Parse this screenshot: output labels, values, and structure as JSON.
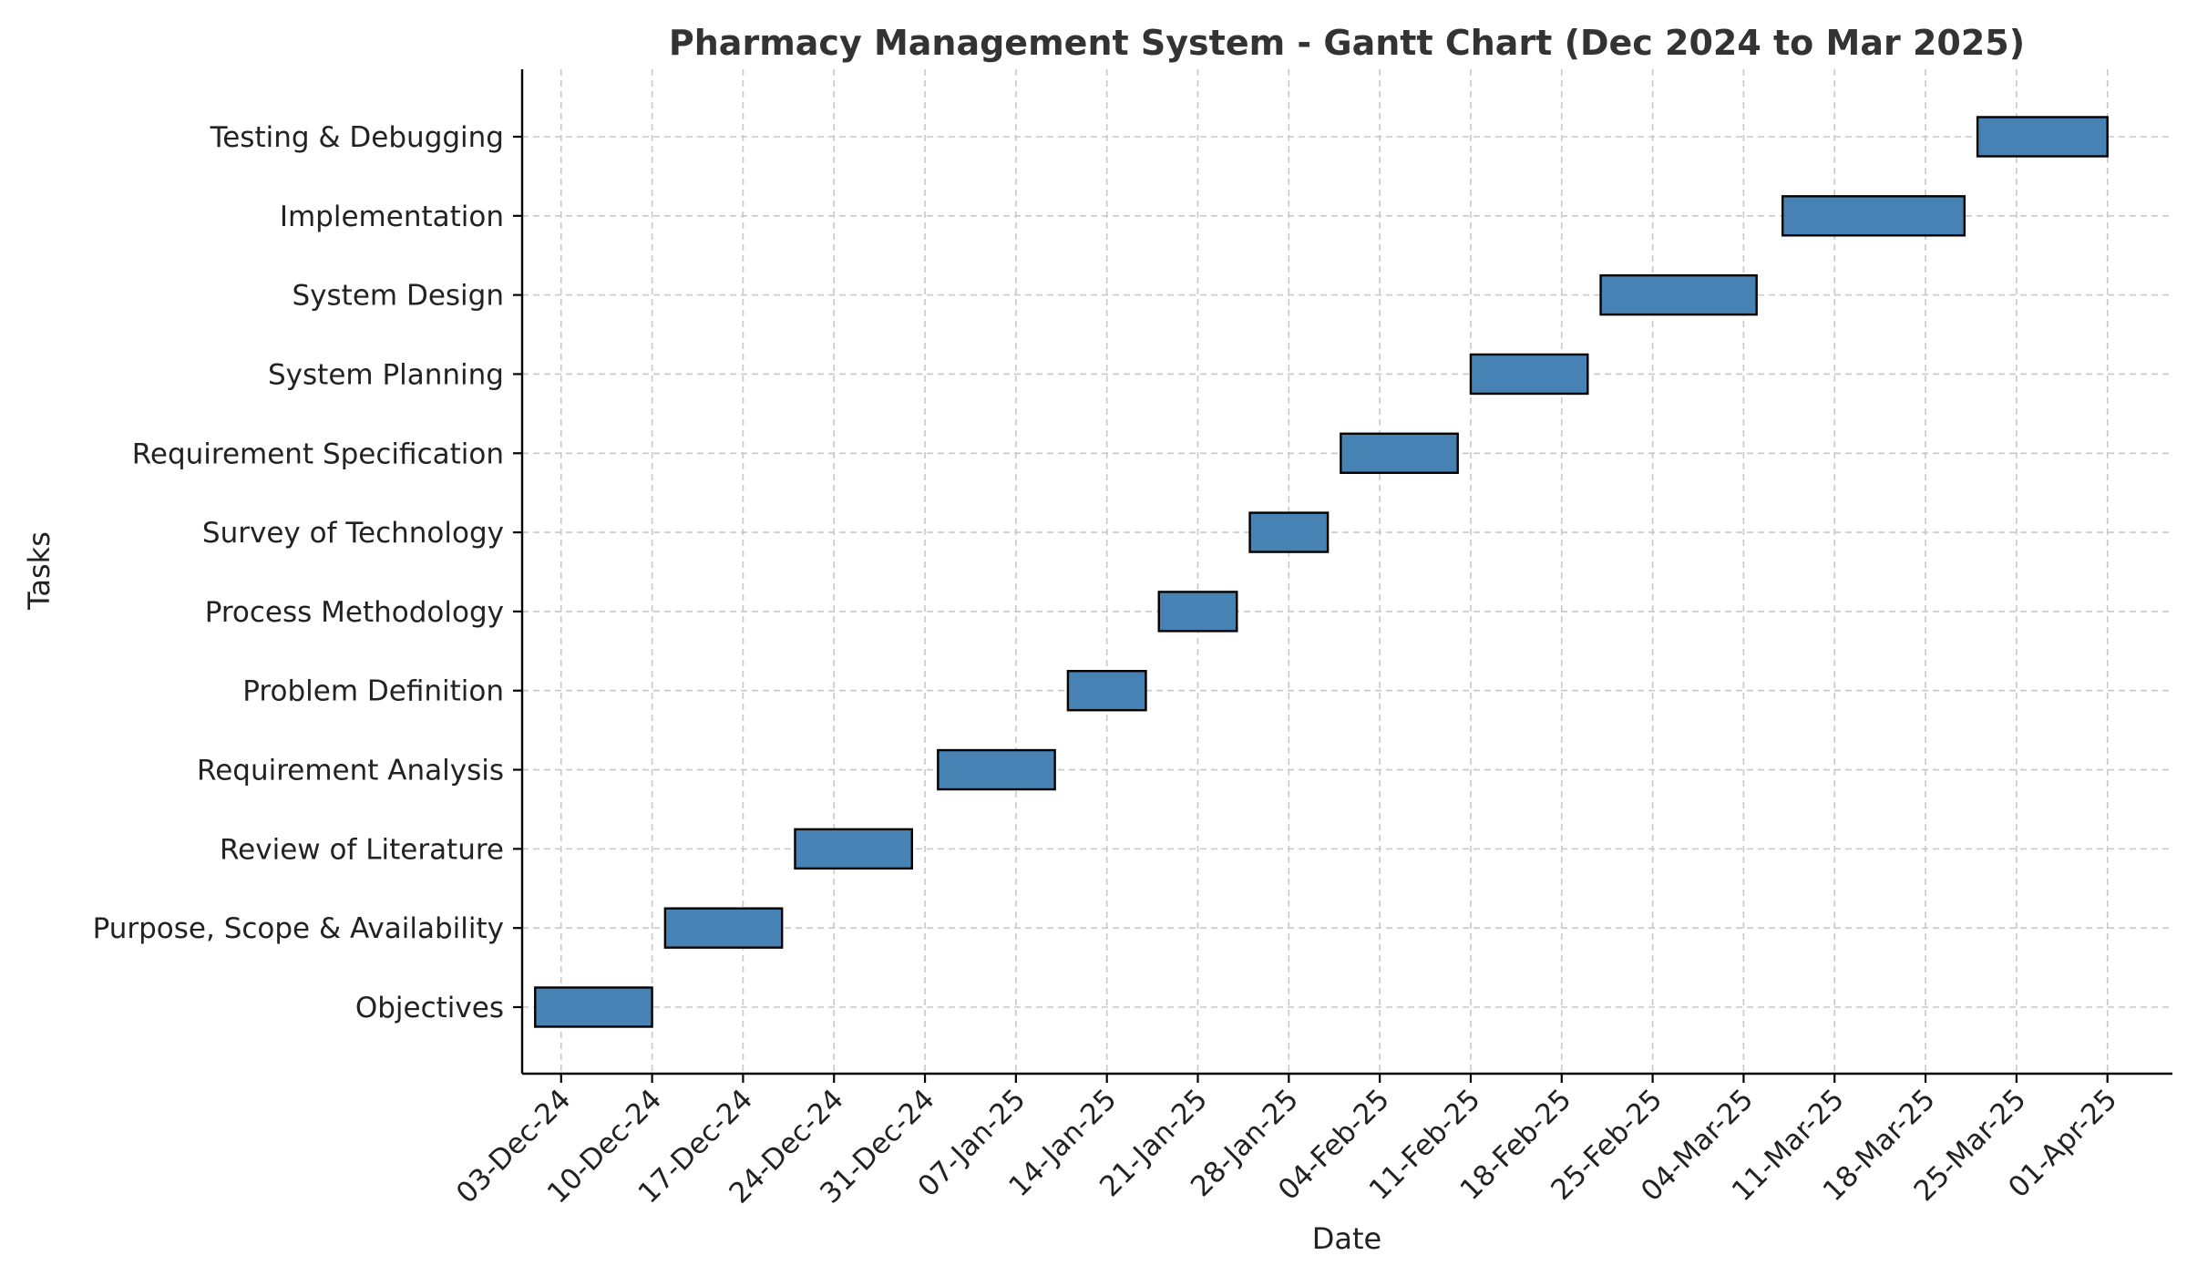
{
  "chart_data": {
    "type": "gantt",
    "title": "Pharmacy Management System - Gantt Chart (Dec 2024 to Mar 2025)",
    "xlabel": "Date",
    "ylabel": "Tasks",
    "bar_color": "#4682b4",
    "grid": true,
    "xlim": [
      "2024-11-30",
      "2025-04-06"
    ],
    "x_ticks": [
      {
        "date": "2024-12-03",
        "label": "03-Dec-24"
      },
      {
        "date": "2024-12-10",
        "label": "10-Dec-24"
      },
      {
        "date": "2024-12-17",
        "label": "17-Dec-24"
      },
      {
        "date": "2024-12-24",
        "label": "24-Dec-24"
      },
      {
        "date": "2024-12-31",
        "label": "31-Dec-24"
      },
      {
        "date": "2025-01-07",
        "label": "07-Jan-25"
      },
      {
        "date": "2025-01-14",
        "label": "14-Jan-25"
      },
      {
        "date": "2025-01-21",
        "label": "21-Jan-25"
      },
      {
        "date": "2025-01-28",
        "label": "28-Jan-25"
      },
      {
        "date": "2025-02-04",
        "label": "04-Feb-25"
      },
      {
        "date": "2025-02-11",
        "label": "11-Feb-25"
      },
      {
        "date": "2025-02-18",
        "label": "18-Feb-25"
      },
      {
        "date": "2025-02-25",
        "label": "25-Feb-25"
      },
      {
        "date": "2025-03-04",
        "label": "04-Mar-25"
      },
      {
        "date": "2025-03-11",
        "label": "11-Mar-25"
      },
      {
        "date": "2025-03-18",
        "label": "18-Mar-25"
      },
      {
        "date": "2025-03-25",
        "label": "25-Mar-25"
      },
      {
        "date": "2025-04-01",
        "label": "01-Apr-25"
      }
    ],
    "tasks": [
      {
        "name": "Objectives",
        "start": "2024-12-01",
        "end": "2024-12-10"
      },
      {
        "name": "Purpose, Scope & Availability",
        "start": "2024-12-11",
        "end": "2024-12-20"
      },
      {
        "name": "Review of Literature",
        "start": "2024-12-21",
        "end": "2024-12-30"
      },
      {
        "name": "Requirement Analysis",
        "start": "2025-01-01",
        "end": "2025-01-10"
      },
      {
        "name": "Problem Definition",
        "start": "2025-01-11",
        "end": "2025-01-17"
      },
      {
        "name": "Process Methodology",
        "start": "2025-01-18",
        "end": "2025-01-24"
      },
      {
        "name": "Survey of Technology",
        "start": "2025-01-25",
        "end": "2025-01-31"
      },
      {
        "name": "Requirement Specification",
        "start": "2025-02-01",
        "end": "2025-02-10"
      },
      {
        "name": "System Planning",
        "start": "2025-02-11",
        "end": "2025-02-20"
      },
      {
        "name": "System Design",
        "start": "2025-02-21",
        "end": "2025-03-05"
      },
      {
        "name": "Implementation",
        "start": "2025-03-07",
        "end": "2025-03-21"
      },
      {
        "name": "Testing & Debugging",
        "start": "2025-03-22",
        "end": "2025-04-01"
      }
    ]
  }
}
